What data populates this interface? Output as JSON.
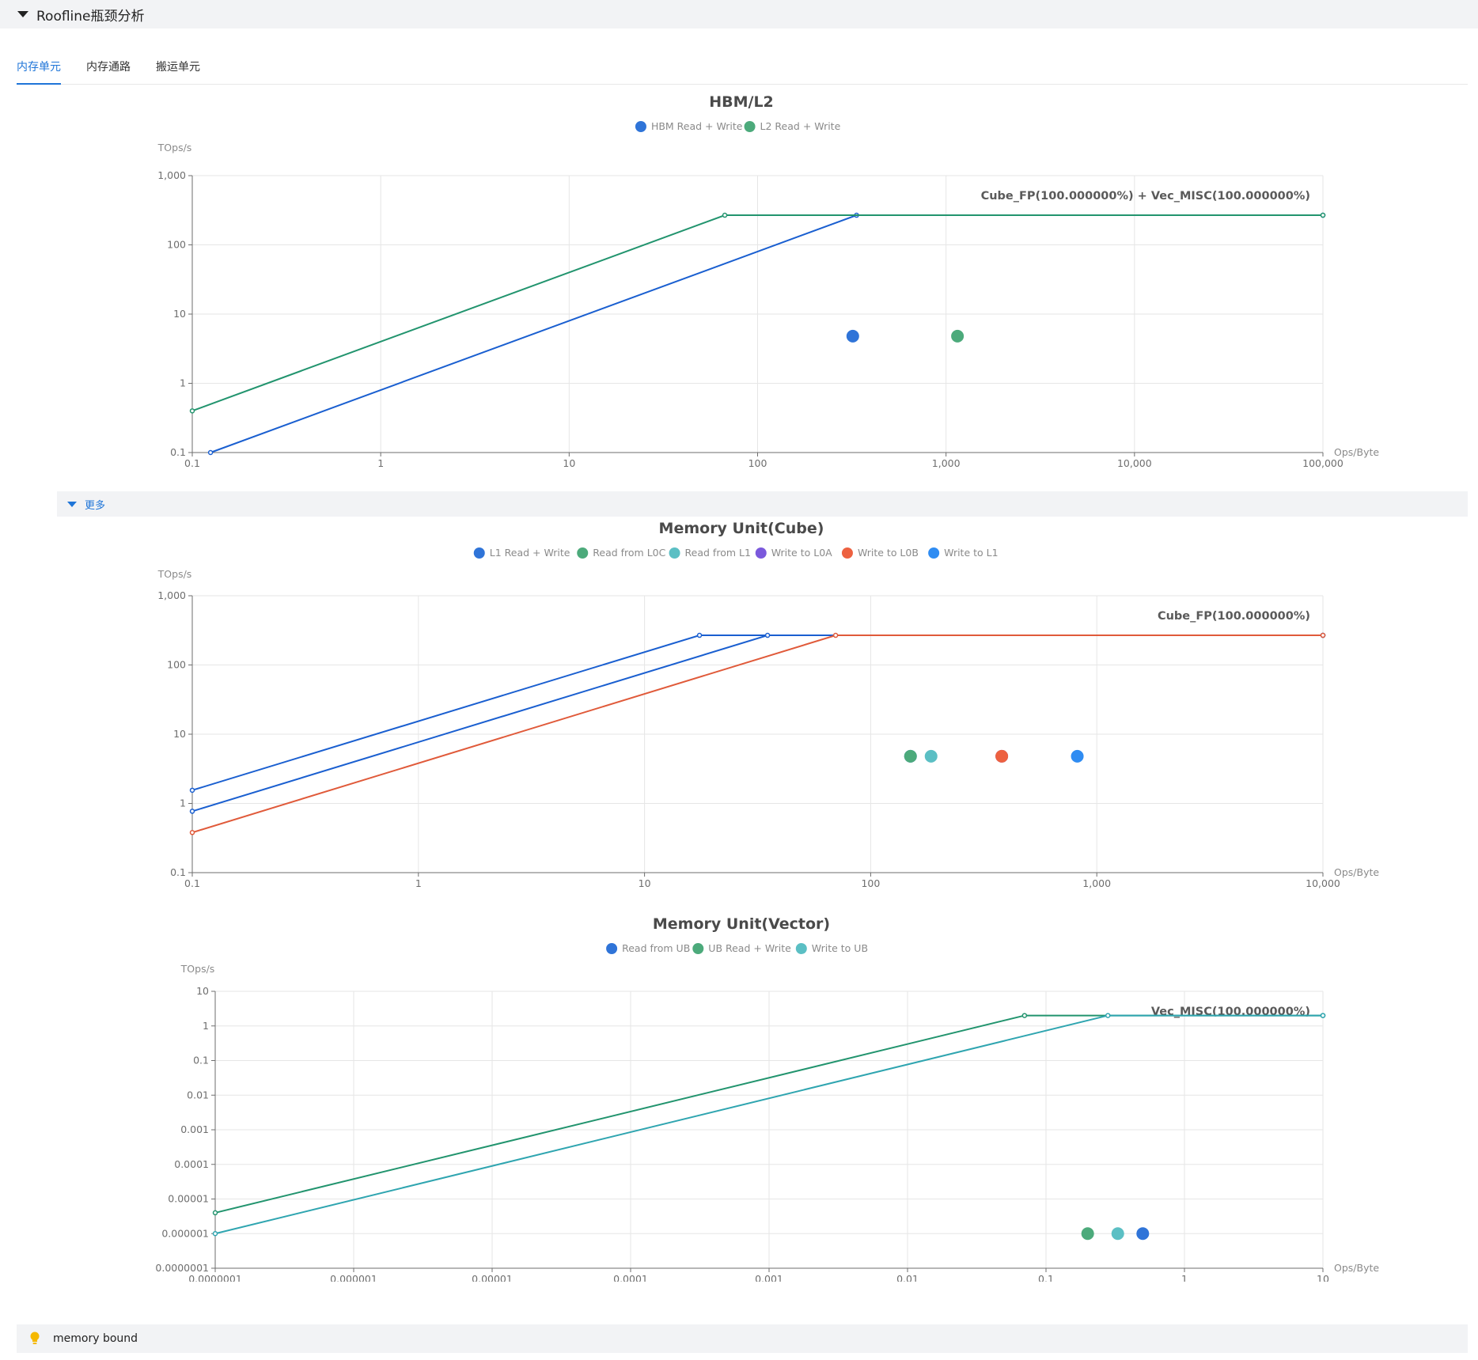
{
  "header": {
    "title": "Roofline瓶颈分析"
  },
  "tabs": [
    {
      "label": "内存单元",
      "active": true
    },
    {
      "label": "内存通路",
      "active": false
    },
    {
      "label": "搬运单元",
      "active": false
    }
  ],
  "more": {
    "label": "更多"
  },
  "footer": {
    "text": "memory bound",
    "icon": "lightbulb-icon"
  },
  "colors": {
    "accent": "#1f75d8",
    "bulb": "#f5b800"
  },
  "chart_data": [
    {
      "type": "scatter",
      "scale": "log-log",
      "title": "HBM/L2",
      "ylabel": "TOps/s",
      "xlabel": "Ops/Byte",
      "xlim": [
        0.1,
        100000
      ],
      "ylim": [
        0.1,
        1000
      ],
      "xticks": [
        "0.1",
        "1",
        "10",
        "100",
        "1,000",
        "10,000",
        "100,000"
      ],
      "yticks": [
        "0.1",
        "1",
        "10",
        "100",
        "1,000"
      ],
      "grid": true,
      "legend_position": "top-center",
      "roof_label": "Cube_FP(100.000000%) + Vec_MISC(100.000000%)",
      "series": [
        {
          "name": "HBM Read + Write",
          "color": "#2f74d8",
          "point": [
            320,
            4.8
          ]
        },
        {
          "name": "L2 Read + Write",
          "color": "#4caa7b",
          "point": [
            1150,
            4.8
          ]
        }
      ],
      "roof_lines": [
        {
          "color": "#1a5fd0",
          "points": [
            [
              0.125,
              0.1
            ],
            [
              335,
              268
            ],
            [
              100000,
              268
            ]
          ]
        },
        {
          "color": "#22946e",
          "points": [
            [
              0.1,
              0.4
            ],
            [
              67,
              268
            ],
            [
              100000,
              268
            ]
          ]
        }
      ]
    },
    {
      "type": "scatter",
      "scale": "log-log",
      "title": "Memory Unit(Cube)",
      "ylabel": "TOps/s",
      "xlabel": "Ops/Byte",
      "xlim": [
        0.1,
        10000
      ],
      "ylim": [
        0.1,
        1000
      ],
      "xticks": [
        "0.1",
        "1",
        "10",
        "100",
        "1,000",
        "10,000"
      ],
      "yticks": [
        "0.1",
        "1",
        "10",
        "100",
        "1,000"
      ],
      "grid": true,
      "legend_position": "top-center",
      "roof_label": "Cube_FP(100.000000%)",
      "series": [
        {
          "name": "L1 Read + Write",
          "color": "#2f74d8",
          "point": [
            150,
            4.8
          ]
        },
        {
          "name": "Read from L0C",
          "color": "#4caa7b",
          "point": [
            150,
            4.8
          ]
        },
        {
          "name": "Read from L1",
          "color": "#5bbfc4",
          "point": [
            185,
            4.8
          ]
        },
        {
          "name": "Write to L0A",
          "color": "#7b59dc",
          "point": [
            380,
            4.8
          ]
        },
        {
          "name": "Write to L0B",
          "color": "#ed6140",
          "point": [
            380,
            4.8
          ]
        },
        {
          "name": "Write to L1",
          "color": "#2f8cf2",
          "point": [
            820,
            4.8
          ]
        }
      ],
      "roof_lines": [
        {
          "color": "#1a5fd0",
          "points": [
            [
              0.1,
              1.55
            ],
            [
              17.5,
              268
            ],
            [
              10000,
              268
            ]
          ]
        },
        {
          "color": "#1a5fd0",
          "points": [
            [
              0.1,
              0.77
            ],
            [
              35,
              268
            ],
            [
              10000,
              268
            ]
          ]
        },
        {
          "color": "#e05a3a",
          "points": [
            [
              0.1,
              0.38
            ],
            [
              70,
              268
            ],
            [
              10000,
              268
            ]
          ]
        }
      ]
    },
    {
      "type": "scatter",
      "scale": "log-log",
      "title": "Memory Unit(Vector)",
      "ylabel": "TOps/s",
      "xlabel": "Ops/Byte",
      "xlim": [
        1e-07,
        10
      ],
      "ylim": [
        1e-07,
        10
      ],
      "xticks": [
        "0.0000001",
        "0.000001",
        "0.00001",
        "0.0001",
        "0.001",
        "0.01",
        "0.1",
        "1",
        "10"
      ],
      "yticks": [
        "0.0000001",
        "0.000001",
        "0.00001",
        "0.0001",
        "0.001",
        "0.01",
        "0.1",
        "1",
        "10"
      ],
      "grid": true,
      "legend_position": "top-center",
      "roof_label": "Vec_MISC(100.000000%)",
      "series": [
        {
          "name": "Read from UB",
          "color": "#2f74d8",
          "point": [
            0.5,
            1e-06
          ]
        },
        {
          "name": "UB Read + Write",
          "color": "#4caa7b",
          "point": [
            0.2,
            1e-06
          ]
        },
        {
          "name": "Write to UB",
          "color": "#5bbfc4",
          "point": [
            0.33,
            1e-06
          ]
        }
      ],
      "roof_lines": [
        {
          "color": "#22946e",
          "points": [
            [
              1e-07,
              4e-06
            ],
            [
              0.07,
              2
            ],
            [
              10,
              2
            ]
          ]
        },
        {
          "color": "#2fa5b0",
          "points": [
            [
              1e-07,
              1e-06
            ],
            [
              0.28,
              2
            ],
            [
              10,
              2
            ]
          ]
        }
      ]
    }
  ]
}
